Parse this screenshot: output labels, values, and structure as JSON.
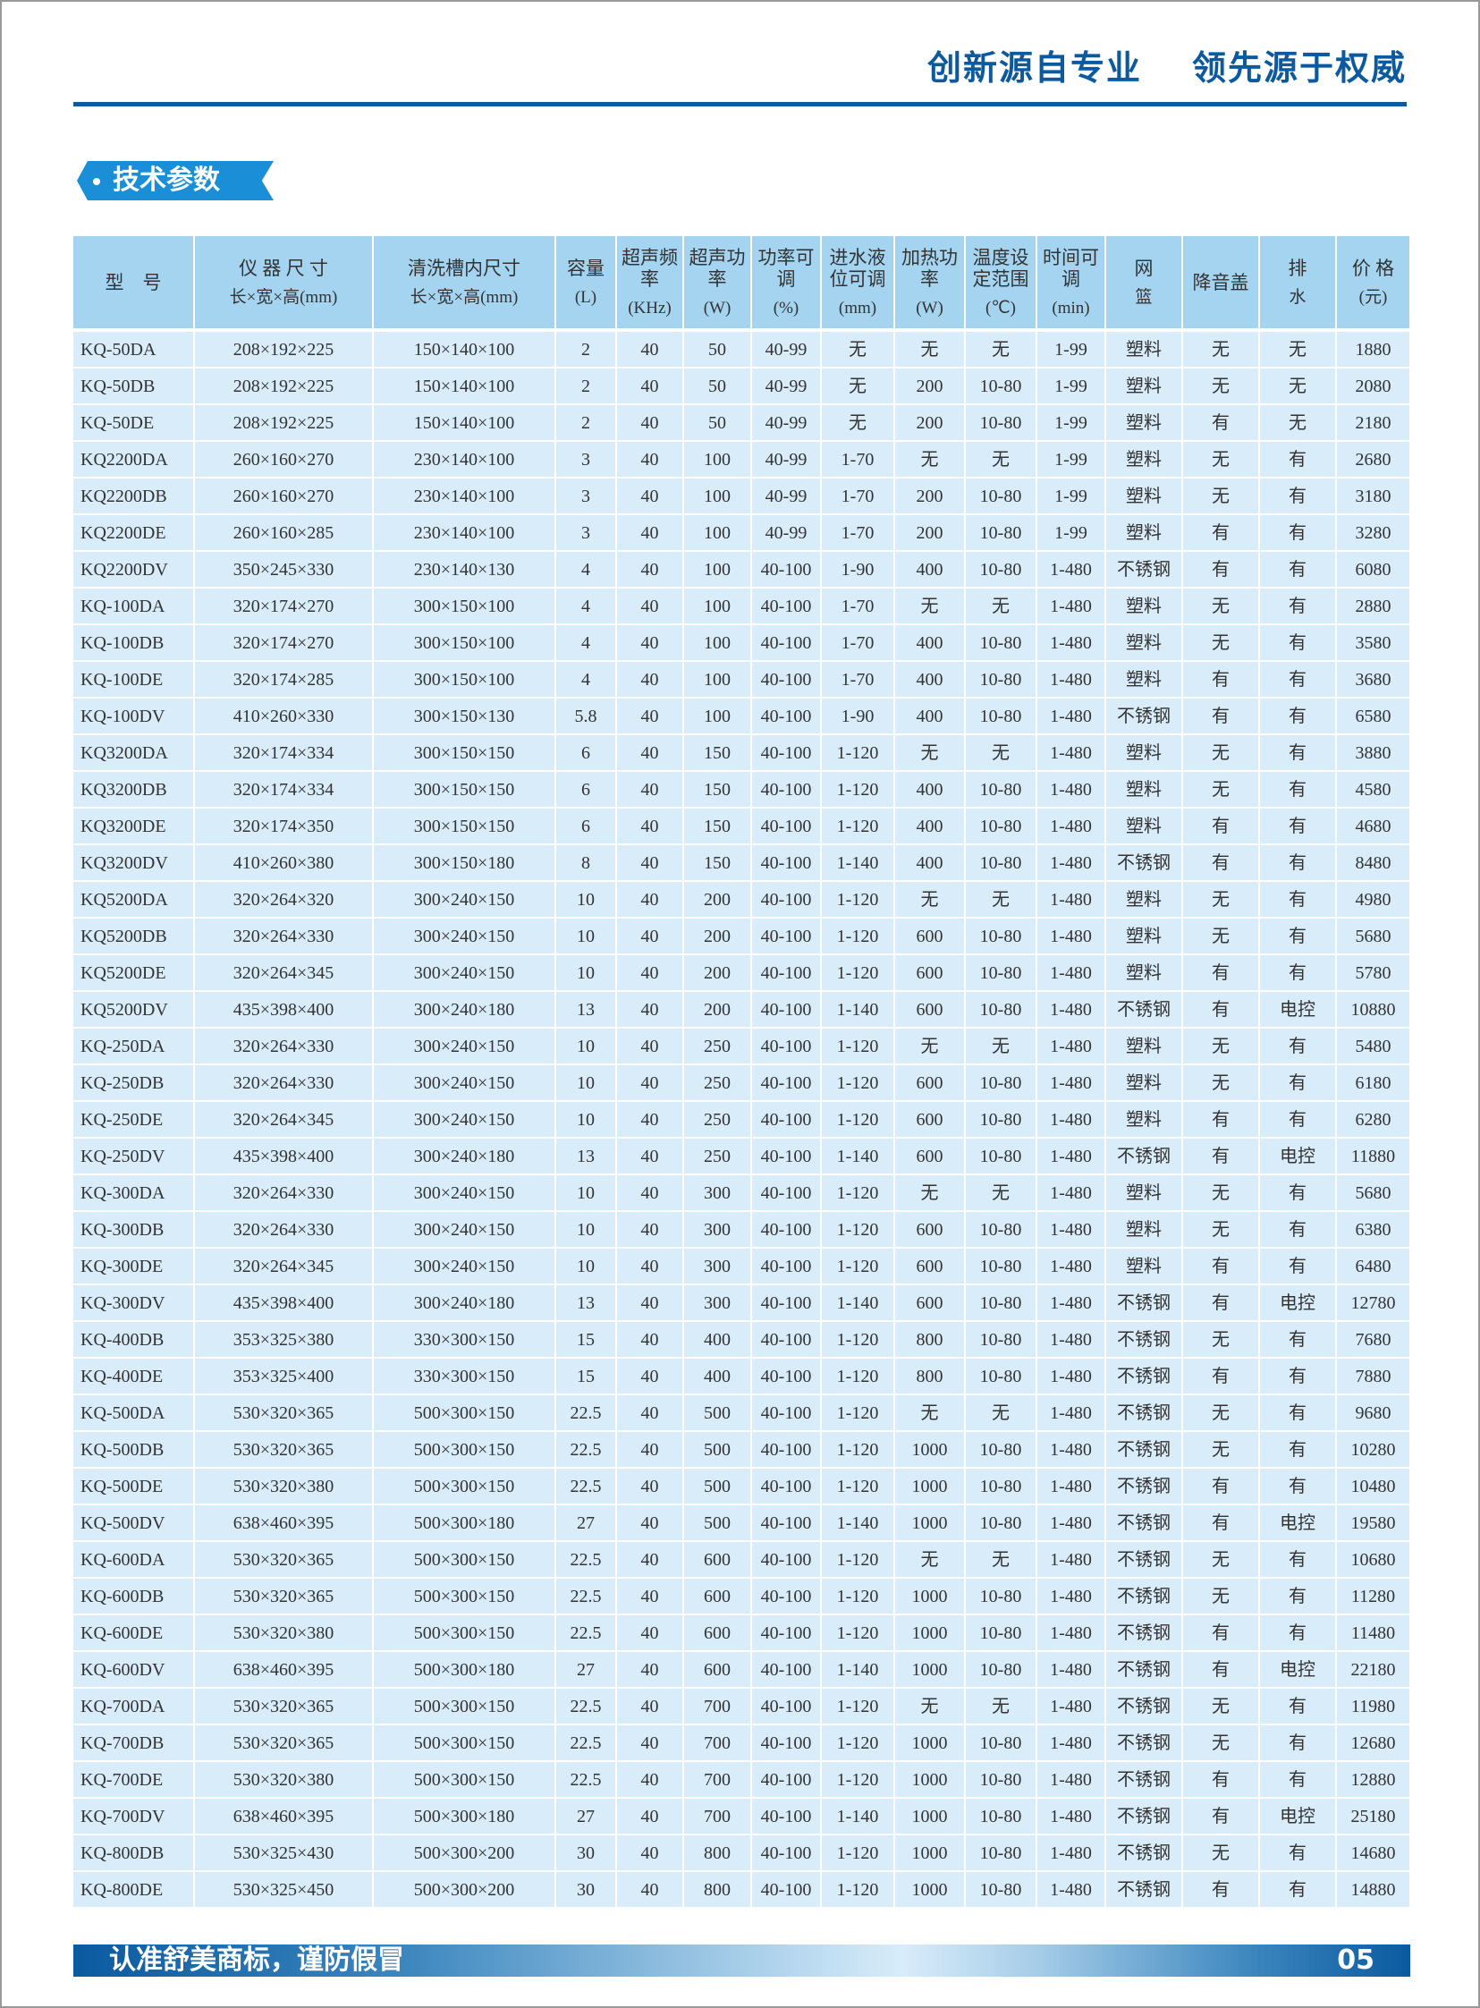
{
  "header": {
    "slogan_left": "创新源自专业",
    "slogan_right": "领先源于权威"
  },
  "section_title": "技术参数",
  "table": {
    "columns": [
      {
        "title": "型　号",
        "unit": ""
      },
      {
        "title": "仪 器 尺 寸",
        "unit": "长×宽×高(mm)"
      },
      {
        "title": "清洗槽内尺寸",
        "unit": "长×宽×高(mm)"
      },
      {
        "title": "容量",
        "unit": "(L)"
      },
      {
        "title": "超声频率",
        "unit": "(KHz)"
      },
      {
        "title": "超声功率",
        "unit": "(W)"
      },
      {
        "title": "功率可调",
        "unit": "(%)"
      },
      {
        "title": "进水液位可调",
        "unit": "(mm)"
      },
      {
        "title": "加热功率",
        "unit": "(W)"
      },
      {
        "title": "温度设定范围",
        "unit": "(℃)"
      },
      {
        "title": "时间可调",
        "unit": "(min)"
      },
      {
        "title": "网",
        "unit": "篮"
      },
      {
        "title": "降音盖",
        "unit": ""
      },
      {
        "title": "排",
        "unit": "水"
      },
      {
        "title": "价 格",
        "unit": "(元)"
      }
    ],
    "rows": [
      [
        "KQ-50DA",
        "208×192×225",
        "150×140×100",
        "2",
        "40",
        "50",
        "40-99",
        "无",
        "无",
        "无",
        "1-99",
        "塑料",
        "无",
        "无",
        "1880"
      ],
      [
        "KQ-50DB",
        "208×192×225",
        "150×140×100",
        "2",
        "40",
        "50",
        "40-99",
        "无",
        "200",
        "10-80",
        "1-99",
        "塑料",
        "无",
        "无",
        "2080"
      ],
      [
        "KQ-50DE",
        "208×192×225",
        "150×140×100",
        "2",
        "40",
        "50",
        "40-99",
        "无",
        "200",
        "10-80",
        "1-99",
        "塑料",
        "有",
        "无",
        "2180"
      ],
      [
        "KQ2200DA",
        "260×160×270",
        "230×140×100",
        "3",
        "40",
        "100",
        "40-99",
        "1-70",
        "无",
        "无",
        "1-99",
        "塑料",
        "无",
        "有",
        "2680"
      ],
      [
        "KQ2200DB",
        "260×160×270",
        "230×140×100",
        "3",
        "40",
        "100",
        "40-99",
        "1-70",
        "200",
        "10-80",
        "1-99",
        "塑料",
        "无",
        "有",
        "3180"
      ],
      [
        "KQ2200DE",
        "260×160×285",
        "230×140×100",
        "3",
        "40",
        "100",
        "40-99",
        "1-70",
        "200",
        "10-80",
        "1-99",
        "塑料",
        "有",
        "有",
        "3280"
      ],
      [
        "KQ2200DV",
        "350×245×330",
        "230×140×130",
        "4",
        "40",
        "100",
        "40-100",
        "1-90",
        "400",
        "10-80",
        "1-480",
        "不锈钢",
        "有",
        "有",
        "6080"
      ],
      [
        "KQ-100DA",
        "320×174×270",
        "300×150×100",
        "4",
        "40",
        "100",
        "40-100",
        "1-70",
        "无",
        "无",
        "1-480",
        "塑料",
        "无",
        "有",
        "2880"
      ],
      [
        "KQ-100DB",
        "320×174×270",
        "300×150×100",
        "4",
        "40",
        "100",
        "40-100",
        "1-70",
        "400",
        "10-80",
        "1-480",
        "塑料",
        "无",
        "有",
        "3580"
      ],
      [
        "KQ-100DE",
        "320×174×285",
        "300×150×100",
        "4",
        "40",
        "100",
        "40-100",
        "1-70",
        "400",
        "10-80",
        "1-480",
        "塑料",
        "有",
        "有",
        "3680"
      ],
      [
        "KQ-100DV",
        "410×260×330",
        "300×150×130",
        "5.8",
        "40",
        "100",
        "40-100",
        "1-90",
        "400",
        "10-80",
        "1-480",
        "不锈钢",
        "有",
        "有",
        "6580"
      ],
      [
        "KQ3200DA",
        "320×174×334",
        "300×150×150",
        "6",
        "40",
        "150",
        "40-100",
        "1-120",
        "无",
        "无",
        "1-480",
        "塑料",
        "无",
        "有",
        "3880"
      ],
      [
        "KQ3200DB",
        "320×174×334",
        "300×150×150",
        "6",
        "40",
        "150",
        "40-100",
        "1-120",
        "400",
        "10-80",
        "1-480",
        "塑料",
        "无",
        "有",
        "4580"
      ],
      [
        "KQ3200DE",
        "320×174×350",
        "300×150×150",
        "6",
        "40",
        "150",
        "40-100",
        "1-120",
        "400",
        "10-80",
        "1-480",
        "塑料",
        "有",
        "有",
        "4680"
      ],
      [
        "KQ3200DV",
        "410×260×380",
        "300×150×180",
        "8",
        "40",
        "150",
        "40-100",
        "1-140",
        "400",
        "10-80",
        "1-480",
        "不锈钢",
        "有",
        "有",
        "8480"
      ],
      [
        "KQ5200DA",
        "320×264×320",
        "300×240×150",
        "10",
        "40",
        "200",
        "40-100",
        "1-120",
        "无",
        "无",
        "1-480",
        "塑料",
        "无",
        "有",
        "4980"
      ],
      [
        "KQ5200DB",
        "320×264×330",
        "300×240×150",
        "10",
        "40",
        "200",
        "40-100",
        "1-120",
        "600",
        "10-80",
        "1-480",
        "塑料",
        "无",
        "有",
        "5680"
      ],
      [
        "KQ5200DE",
        "320×264×345",
        "300×240×150",
        "10",
        "40",
        "200",
        "40-100",
        "1-120",
        "600",
        "10-80",
        "1-480",
        "塑料",
        "有",
        "有",
        "5780"
      ],
      [
        "KQ5200DV",
        "435×398×400",
        "300×240×180",
        "13",
        "40",
        "200",
        "40-100",
        "1-140",
        "600",
        "10-80",
        "1-480",
        "不锈钢",
        "有",
        "电控",
        "10880"
      ],
      [
        "KQ-250DA",
        "320×264×330",
        "300×240×150",
        "10",
        "40",
        "250",
        "40-100",
        "1-120",
        "无",
        "无",
        "1-480",
        "塑料",
        "无",
        "有",
        "5480"
      ],
      [
        "KQ-250DB",
        "320×264×330",
        "300×240×150",
        "10",
        "40",
        "250",
        "40-100",
        "1-120",
        "600",
        "10-80",
        "1-480",
        "塑料",
        "无",
        "有",
        "6180"
      ],
      [
        "KQ-250DE",
        "320×264×345",
        "300×240×150",
        "10",
        "40",
        "250",
        "40-100",
        "1-120",
        "600",
        "10-80",
        "1-480",
        "塑料",
        "有",
        "有",
        "6280"
      ],
      [
        "KQ-250DV",
        "435×398×400",
        "300×240×180",
        "13",
        "40",
        "250",
        "40-100",
        "1-140",
        "600",
        "10-80",
        "1-480",
        "不锈钢",
        "有",
        "电控",
        "11880"
      ],
      [
        "KQ-300DA",
        "320×264×330",
        "300×240×150",
        "10",
        "40",
        "300",
        "40-100",
        "1-120",
        "无",
        "无",
        "1-480",
        "塑料",
        "无",
        "有",
        "5680"
      ],
      [
        "KQ-300DB",
        "320×264×330",
        "300×240×150",
        "10",
        "40",
        "300",
        "40-100",
        "1-120",
        "600",
        "10-80",
        "1-480",
        "塑料",
        "无",
        "有",
        "6380"
      ],
      [
        "KQ-300DE",
        "320×264×345",
        "300×240×150",
        "10",
        "40",
        "300",
        "40-100",
        "1-120",
        "600",
        "10-80",
        "1-480",
        "塑料",
        "有",
        "有",
        "6480"
      ],
      [
        "KQ-300DV",
        "435×398×400",
        "300×240×180",
        "13",
        "40",
        "300",
        "40-100",
        "1-140",
        "600",
        "10-80",
        "1-480",
        "不锈钢",
        "有",
        "电控",
        "12780"
      ],
      [
        "KQ-400DB",
        "353×325×380",
        "330×300×150",
        "15",
        "40",
        "400",
        "40-100",
        "1-120",
        "800",
        "10-80",
        "1-480",
        "不锈钢",
        "无",
        "有",
        "7680"
      ],
      [
        "KQ-400DE",
        "353×325×400",
        "330×300×150",
        "15",
        "40",
        "400",
        "40-100",
        "1-120",
        "800",
        "10-80",
        "1-480",
        "不锈钢",
        "有",
        "有",
        "7880"
      ],
      [
        "KQ-500DA",
        "530×320×365",
        "500×300×150",
        "22.5",
        "40",
        "500",
        "40-100",
        "1-120",
        "无",
        "无",
        "1-480",
        "不锈钢",
        "无",
        "有",
        "9680"
      ],
      [
        "KQ-500DB",
        "530×320×365",
        "500×300×150",
        "22.5",
        "40",
        "500",
        "40-100",
        "1-120",
        "1000",
        "10-80",
        "1-480",
        "不锈钢",
        "无",
        "有",
        "10280"
      ],
      [
        "KQ-500DE",
        "530×320×380",
        "500×300×150",
        "22.5",
        "40",
        "500",
        "40-100",
        "1-120",
        "1000",
        "10-80",
        "1-480",
        "不锈钢",
        "有",
        "有",
        "10480"
      ],
      [
        "KQ-500DV",
        "638×460×395",
        "500×300×180",
        "27",
        "40",
        "500",
        "40-100",
        "1-140",
        "1000",
        "10-80",
        "1-480",
        "不锈钢",
        "有",
        "电控",
        "19580"
      ],
      [
        "KQ-600DA",
        "530×320×365",
        "500×300×150",
        "22.5",
        "40",
        "600",
        "40-100",
        "1-120",
        "无",
        "无",
        "1-480",
        "不锈钢",
        "无",
        "有",
        "10680"
      ],
      [
        "KQ-600DB",
        "530×320×365",
        "500×300×150",
        "22.5",
        "40",
        "600",
        "40-100",
        "1-120",
        "1000",
        "10-80",
        "1-480",
        "不锈钢",
        "无",
        "有",
        "11280"
      ],
      [
        "KQ-600DE",
        "530×320×380",
        "500×300×150",
        "22.5",
        "40",
        "600",
        "40-100",
        "1-120",
        "1000",
        "10-80",
        "1-480",
        "不锈钢",
        "有",
        "有",
        "11480"
      ],
      [
        "KQ-600DV",
        "638×460×395",
        "500×300×180",
        "27",
        "40",
        "600",
        "40-100",
        "1-140",
        "1000",
        "10-80",
        "1-480",
        "不锈钢",
        "有",
        "电控",
        "22180"
      ],
      [
        "KQ-700DA",
        "530×320×365",
        "500×300×150",
        "22.5",
        "40",
        "700",
        "40-100",
        "1-120",
        "无",
        "无",
        "1-480",
        "不锈钢",
        "无",
        "有",
        "11980"
      ],
      [
        "KQ-700DB",
        "530×320×365",
        "500×300×150",
        "22.5",
        "40",
        "700",
        "40-100",
        "1-120",
        "1000",
        "10-80",
        "1-480",
        "不锈钢",
        "无",
        "有",
        "12680"
      ],
      [
        "KQ-700DE",
        "530×320×380",
        "500×300×150",
        "22.5",
        "40",
        "700",
        "40-100",
        "1-120",
        "1000",
        "10-80",
        "1-480",
        "不锈钢",
        "有",
        "有",
        "12880"
      ],
      [
        "KQ-700DV",
        "638×460×395",
        "500×300×180",
        "27",
        "40",
        "700",
        "40-100",
        "1-140",
        "1000",
        "10-80",
        "1-480",
        "不锈钢",
        "有",
        "电控",
        "25180"
      ],
      [
        "KQ-800DB",
        "530×325×430",
        "500×300×200",
        "30",
        "40",
        "800",
        "40-100",
        "1-120",
        "1000",
        "10-80",
        "1-480",
        "不锈钢",
        "无",
        "有",
        "14680"
      ],
      [
        "KQ-800DE",
        "530×325×450",
        "500×300×200",
        "30",
        "40",
        "800",
        "40-100",
        "1-120",
        "1000",
        "10-80",
        "1-480",
        "不锈钢",
        "有",
        "有",
        "14880"
      ]
    ]
  },
  "footer": {
    "slogan": "认准舒美商标，谨防假冒",
    "page_number": "05"
  },
  "colors": {
    "brand_blue": "#0b5aa0",
    "header_cell": "#a4d4f0",
    "body_cell": "#d8ecfa"
  }
}
